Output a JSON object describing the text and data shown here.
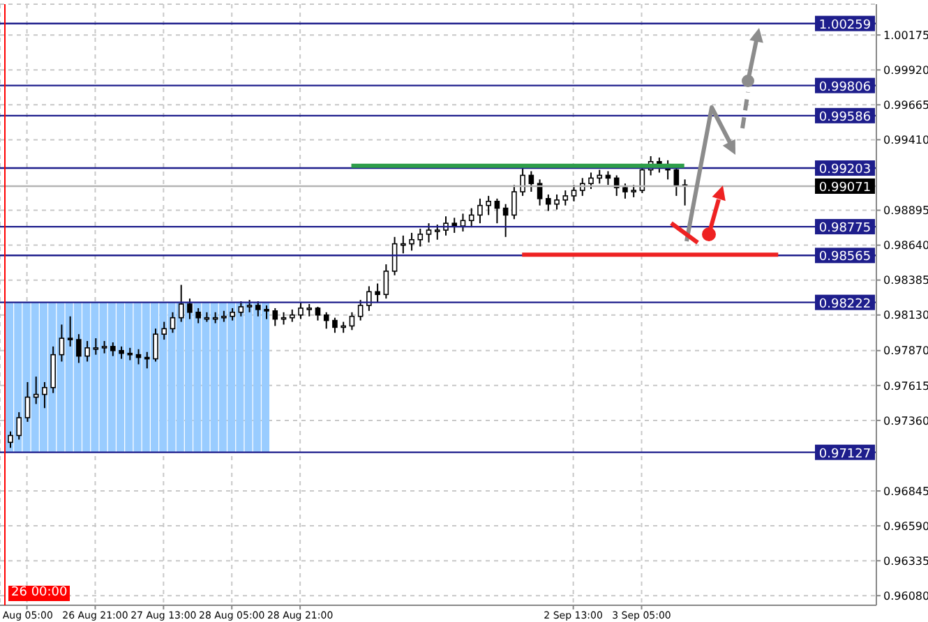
{
  "chart_data": {
    "type": "candlestick",
    "categories": [
      null,
      null,
      "Aug 05:00",
      null,
      null,
      null,
      null,
      null,
      null,
      null,
      "26 Aug 21:00",
      null,
      null,
      null,
      null,
      null,
      null,
      null,
      "27 Aug 13:00",
      null,
      null,
      null,
      null,
      null,
      null,
      null,
      "28 Aug 05:00",
      null,
      null,
      null,
      null,
      null,
      null,
      null,
      "28 Aug 21:00",
      null,
      null,
      null,
      null,
      null,
      null,
      null,
      null,
      null,
      null,
      null,
      null,
      null,
      null,
      null,
      null,
      null,
      null,
      null,
      null,
      null,
      null,
      null,
      null,
      null,
      null,
      null,
      null,
      null,
      null,
      null,
      "2 Sep 13:00",
      null,
      null,
      null,
      null,
      null,
      null,
      null,
      "3 Sep 05:00",
      null,
      null,
      null,
      null,
      null,
      null,
      null,
      null,
      null,
      null,
      null,
      null,
      null,
      null,
      null,
      null,
      null,
      null,
      null,
      null,
      null,
      null,
      null,
      null,
      null,
      null,
      null
    ],
    "ohlc": [
      [
        0.972,
        0.9728,
        0.9716,
        0.9725
      ],
      [
        0.9725,
        0.9742,
        0.9722,
        0.9738
      ],
      [
        0.9738,
        0.9764,
        0.9735,
        0.9753
      ],
      [
        0.9753,
        0.9768,
        0.9748,
        0.9755
      ],
      [
        0.9755,
        0.9764,
        0.9745,
        0.976
      ],
      [
        0.976,
        0.979,
        0.9756,
        0.9784
      ],
      [
        0.9784,
        0.9806,
        0.9779,
        0.9796
      ],
      [
        0.9796,
        0.9812,
        0.979,
        0.9795
      ],
      [
        0.9795,
        0.9799,
        0.9778,
        0.9783
      ],
      [
        0.9783,
        0.9794,
        0.9779,
        0.9789
      ],
      [
        0.9789,
        0.9796,
        0.9784,
        0.9789
      ],
      [
        0.9789,
        0.9794,
        0.9785,
        0.979
      ],
      [
        0.979,
        0.9793,
        0.9783,
        0.9787
      ],
      [
        0.9787,
        0.979,
        0.9781,
        0.9785
      ],
      [
        0.9785,
        0.9789,
        0.978,
        0.9784
      ],
      [
        0.9784,
        0.9788,
        0.9777,
        0.9782
      ],
      [
        0.9782,
        0.9786,
        0.9774,
        0.9781
      ],
      [
        0.9781,
        0.9803,
        0.9779,
        0.9799
      ],
      [
        0.9799,
        0.9808,
        0.9795,
        0.9803
      ],
      [
        0.9803,
        0.9815,
        0.98,
        0.9811
      ],
      [
        0.9811,
        0.9835,
        0.9808,
        0.9821
      ],
      [
        0.9821,
        0.9825,
        0.981,
        0.9815
      ],
      [
        0.9815,
        0.9818,
        0.9807,
        0.9811
      ],
      [
        0.9811,
        0.9815,
        0.9808,
        0.9811
      ],
      [
        0.9811,
        0.9815,
        0.9807,
        0.9811
      ],
      [
        0.9811,
        0.9816,
        0.9808,
        0.9812
      ],
      [
        0.9812,
        0.9818,
        0.9809,
        0.9815
      ],
      [
        0.9815,
        0.9823,
        0.9812,
        0.9819
      ],
      [
        0.9819,
        0.9824,
        0.9815,
        0.982
      ],
      [
        0.982,
        0.9823,
        0.9812,
        0.9817
      ],
      [
        0.9817,
        0.982,
        0.981,
        0.9816
      ],
      [
        0.9816,
        0.9818,
        0.9805,
        0.981
      ],
      [
        0.981,
        0.9815,
        0.9806,
        0.9811
      ],
      [
        0.9811,
        0.9817,
        0.9808,
        0.9813
      ],
      [
        0.9813,
        0.9822,
        0.981,
        0.9818
      ],
      [
        0.9818,
        0.9821,
        0.9812,
        0.9818
      ],
      [
        0.9818,
        0.9819,
        0.9809,
        0.9813
      ],
      [
        0.9813,
        0.9815,
        0.9803,
        0.9809
      ],
      [
        0.9809,
        0.9811,
        0.98,
        0.9804
      ],
      [
        0.9804,
        0.9808,
        0.98,
        0.9805
      ],
      [
        0.9805,
        0.9815,
        0.9802,
        0.9812
      ],
      [
        0.9812,
        0.9824,
        0.9809,
        0.982
      ],
      [
        0.982,
        0.9834,
        0.9816,
        0.983
      ],
      [
        0.983,
        0.9836,
        0.9822,
        0.9828
      ],
      [
        0.9828,
        0.985,
        0.9825,
        0.9845
      ],
      [
        0.9845,
        0.987,
        0.9842,
        0.9865
      ],
      [
        0.9865,
        0.9871,
        0.9858,
        0.9865
      ],
      [
        0.9865,
        0.9873,
        0.986,
        0.9868
      ],
      [
        0.9868,
        0.9876,
        0.9863,
        0.9872
      ],
      [
        0.9872,
        0.988,
        0.9866,
        0.9875
      ],
      [
        0.9875,
        0.9879,
        0.9868,
        0.9875
      ],
      [
        0.9875,
        0.9885,
        0.9871,
        0.988
      ],
      [
        0.988,
        0.9884,
        0.9873,
        0.9878
      ],
      [
        0.9878,
        0.9887,
        0.9874,
        0.9882
      ],
      [
        0.9882,
        0.9891,
        0.9877,
        0.9886
      ],
      [
        0.9886,
        0.9898,
        0.988,
        0.9893
      ],
      [
        0.9893,
        0.99,
        0.9886,
        0.9896
      ],
      [
        0.9896,
        0.9898,
        0.988,
        0.9891
      ],
      [
        0.9891,
        0.9894,
        0.987,
        0.9886
      ],
      [
        0.9886,
        0.9908,
        0.9883,
        0.9903
      ],
      [
        0.9903,
        0.992,
        0.99,
        0.9915
      ],
      [
        0.9915,
        0.9918,
        0.9903,
        0.9909
      ],
      [
        0.9909,
        0.9912,
        0.9893,
        0.9898
      ],
      [
        0.9898,
        0.9901,
        0.9889,
        0.9894
      ],
      [
        0.9894,
        0.9901,
        0.989,
        0.9897
      ],
      [
        0.9897,
        0.9904,
        0.9893,
        0.99
      ],
      [
        0.99,
        0.9908,
        0.9896,
        0.9904
      ],
      [
        0.9904,
        0.9913,
        0.99,
        0.9909
      ],
      [
        0.9909,
        0.9917,
        0.9905,
        0.9913
      ],
      [
        0.9913,
        0.9919,
        0.9909,
        0.9915
      ],
      [
        0.9915,
        0.9918,
        0.9908,
        0.9913
      ],
      [
        0.9913,
        0.9915,
        0.99,
        0.9906
      ],
      [
        0.9906,
        0.9909,
        0.9898,
        0.9903
      ],
      [
        0.9903,
        0.9908,
        0.9899,
        0.9904
      ],
      [
        0.9904,
        0.9922,
        0.9902,
        0.9919
      ],
      [
        0.9919,
        0.9929,
        0.9915,
        0.9925
      ],
      [
        0.9925,
        0.9928,
        0.9917,
        0.9923
      ],
      [
        0.9923,
        0.9926,
        0.9912,
        0.9919
      ],
      [
        0.9919,
        0.9921,
        0.99,
        0.9908
      ],
      [
        0.9908,
        0.9912,
        0.9893,
        0.9907
      ],
      null,
      null,
      null,
      null,
      null,
      null,
      null,
      null,
      null,
      null,
      null,
      null,
      null,
      null,
      null,
      null,
      null,
      null,
      null,
      null,
      null,
      null
    ],
    "series": [
      {
        "type": "bar",
        "color": "#99ccff",
        "values": [
          0.01095,
          0.01095,
          0.01095,
          0.01095,
          0.01095,
          0.01095,
          0.01095,
          0.01095,
          0.01095,
          0.01095,
          0.01095,
          0.01095,
          0.01095,
          0.01095,
          0.01095,
          0.01095,
          0.01095,
          0.01095,
          0.01095,
          0.01095,
          0.01095,
          0.01095,
          0.01095,
          0.01095,
          0.01095,
          0.01095,
          0.01095,
          0.01095,
          0.01095,
          0.01095,
          0.01095,
          null,
          null,
          null,
          null,
          null,
          null,
          null,
          null,
          null,
          null,
          null,
          null,
          null,
          null,
          null,
          null,
          null,
          null,
          null,
          null,
          null,
          null,
          null,
          null,
          null,
          null,
          null,
          null,
          null,
          null,
          null,
          null,
          null,
          null,
          null,
          null,
          null,
          null,
          null,
          null,
          null,
          null,
          null,
          null,
          null,
          null,
          null,
          null,
          null,
          null,
          null,
          null,
          null,
          null,
          null,
          null,
          null,
          null,
          null,
          null,
          null,
          null,
          null,
          null,
          null,
          null,
          null,
          null,
          null,
          null,
          null
        ],
        "base": [
          0.97127,
          0.97127,
          0.97127,
          0.97127,
          0.97127,
          0.97127,
          0.97127,
          0.97127,
          0.97127,
          0.97127,
          0.97127,
          0.97127,
          0.97127,
          0.97127,
          0.97127,
          0.97127,
          0.97127,
          0.97127,
          0.97127,
          0.97127,
          0.97127,
          0.97127,
          0.97127,
          0.97127,
          0.97127,
          0.97127,
          0.97127,
          0.97127,
          0.97127,
          0.97127,
          0.97127,
          null,
          null,
          null,
          null,
          null,
          null,
          null,
          null,
          null,
          null,
          null,
          null,
          null,
          null,
          null,
          null,
          null,
          null,
          null,
          null,
          null,
          null,
          null,
          null,
          null,
          null,
          null,
          null,
          null,
          null,
          null,
          null,
          null,
          null,
          null,
          null,
          null,
          null,
          null,
          null,
          null,
          null,
          null,
          null,
          null,
          null,
          null,
          null,
          null,
          null,
          null,
          null,
          null,
          null,
          null,
          null,
          null,
          null,
          null,
          null,
          null,
          null,
          null,
          null,
          null,
          null,
          null,
          null,
          null,
          null,
          null
        ]
      },
      {
        "type": "line",
        "color": "#2e9e4a",
        "values": [
          null,
          null,
          null,
          null,
          null,
          null,
          null,
          null,
          null,
          null,
          null,
          null,
          null,
          null,
          null,
          null,
          null,
          null,
          null,
          null,
          null,
          null,
          null,
          null,
          null,
          null,
          null,
          null,
          null,
          null,
          null,
          null,
          null,
          null,
          null,
          null,
          null,
          null,
          null,
          null,
          0.9922,
          0.9922,
          0.9922,
          0.9922,
          0.9922,
          0.9922,
          0.9922,
          0.9922,
          0.9922,
          0.9922,
          0.9922,
          0.9922,
          0.9922,
          0.9922,
          0.9922,
          0.9922,
          0.9922,
          0.9922,
          0.9922,
          0.9922,
          0.9922,
          0.9922,
          0.9922,
          0.9922,
          0.9922,
          0.9922,
          0.9922,
          0.9922,
          0.9922,
          0.9922,
          0.9922,
          0.9922,
          0.9922,
          0.9922,
          0.9922,
          0.9922,
          0.9922,
          0.9922,
          0.9922,
          0.9922,
          null,
          null,
          null,
          null,
          null,
          null,
          null,
          null,
          null,
          null,
          null,
          null,
          null,
          null,
          null,
          null,
          null,
          null,
          null,
          null,
          null,
          null
        ]
      },
      {
        "type": "line",
        "color": "#ee2222",
        "values": [
          null,
          null,
          null,
          null,
          null,
          null,
          null,
          null,
          null,
          null,
          null,
          null,
          null,
          null,
          null,
          null,
          null,
          null,
          null,
          null,
          null,
          null,
          null,
          null,
          null,
          null,
          null,
          null,
          null,
          null,
          null,
          null,
          null,
          null,
          null,
          null,
          null,
          null,
          null,
          null,
          null,
          null,
          null,
          null,
          null,
          null,
          null,
          null,
          null,
          null,
          null,
          null,
          null,
          null,
          null,
          null,
          null,
          null,
          null,
          null,
          0.9857,
          0.9857,
          0.9857,
          0.9857,
          0.9857,
          0.9857,
          0.9857,
          0.9857,
          0.9857,
          0.9857,
          0.9857,
          0.9857,
          0.9857,
          0.9857,
          0.9857,
          0.9857,
          0.9857,
          0.9857,
          0.9857,
          0.9857,
          0.9857,
          0.9857,
          0.9857,
          0.9857,
          0.9857,
          0.9857,
          0.9857,
          0.9857,
          0.9857,
          0.9857,
          0.9857,
          null,
          null,
          null,
          null,
          null,
          null,
          null,
          null,
          null,
          null,
          null
        ]
      }
    ],
    "ylim": [
      0.9601,
      1.004
    ],
    "yticks": [
      1.00175,
      {
        "value": 0.9992,
        "label": "0.99920"
      },
      0.99665,
      {
        "value": 0.9941,
        "label": "0.99410"
      },
      0.98895,
      {
        "value": 0.9864,
        "label": "0.98640"
      },
      0.98385,
      {
        "value": 0.9813,
        "label": "0.98130"
      },
      {
        "value": 0.9787,
        "label": "0.97870"
      },
      0.97615,
      {
        "value": 0.9736,
        "label": "0.97360"
      },
      0.96845,
      {
        "value": 0.9659,
        "label": "0.96590"
      },
      0.96335,
      {
        "value": 0.9608,
        "label": "0.96080"
      }
    ],
    "ref_lines": [
      {
        "axis": "y",
        "value": 1.00259,
        "label": "1.00259",
        "color": "#1e1e8c"
      },
      {
        "axis": "y",
        "value": 0.99806,
        "label": "0.99806",
        "color": "#1e1e8c"
      },
      {
        "axis": "y",
        "value": 0.99586,
        "label": "0.99586",
        "color": "#1e1e8c"
      },
      {
        "axis": "y",
        "value": 0.99203,
        "label": "0.99203",
        "color": "#1e1e8c"
      },
      {
        "axis": "y",
        "value": 0.99071,
        "label": "0.99071",
        "color": "#b4b4b4"
      },
      {
        "axis": "y",
        "value": 0.98775,
        "label": "0.98775",
        "color": "#1e1e8c"
      },
      {
        "axis": "y",
        "value": 0.98565,
        "label": "0.98565",
        "color": "#1e1e8c"
      },
      {
        "axis": "y",
        "value": 0.98222,
        "label": "0.98222",
        "color": "#1e1e8c"
      },
      {
        "axis": "y",
        "value": 0.97127,
        "label": "0.97127",
        "color": "#1e1e8c"
      }
    ],
    "annotations": [
      "26 00:00"
    ],
    "grid": true
  }
}
